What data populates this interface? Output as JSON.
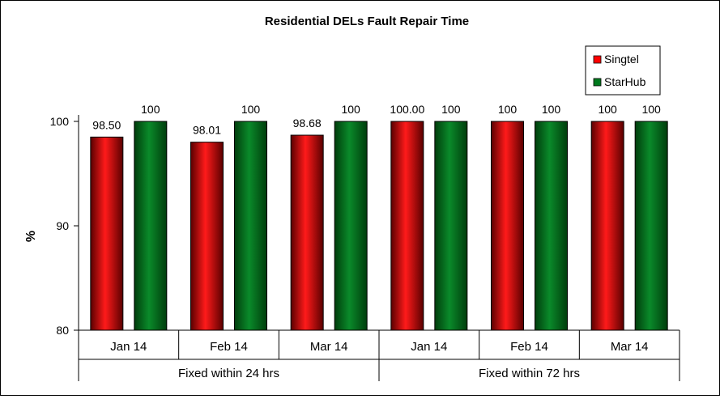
{
  "chart_data": {
    "type": "bar",
    "title": "Residential DELs Fault Repair Time",
    "ylabel": "%",
    "xlabel": "",
    "ylim": [
      80,
      100
    ],
    "yticks": [
      80,
      90,
      100
    ],
    "grid": false,
    "legend_position": "top-right",
    "categories": [
      "Jan 14",
      "Feb 14",
      "Mar 14",
      "Jan 14",
      "Feb 14",
      "Mar 14"
    ],
    "groups": [
      {
        "label": "Fixed within 24 hrs",
        "span": 3
      },
      {
        "label": "Fixed within 72 hrs",
        "span": 3
      }
    ],
    "series": [
      {
        "name": "Singtel",
        "color": "#ff0000",
        "values": [
          98.5,
          98.01,
          98.68,
          100,
          100,
          100
        ],
        "labels": [
          "98.50",
          "98.01",
          "98.68",
          "100.00",
          "100",
          "100"
        ]
      },
      {
        "name": "StarHub",
        "color": "#007a1e",
        "values": [
          100,
          100,
          100,
          100,
          100,
          100
        ],
        "labels": [
          "100",
          "100",
          "100",
          "100",
          "100",
          "100"
        ]
      }
    ]
  }
}
